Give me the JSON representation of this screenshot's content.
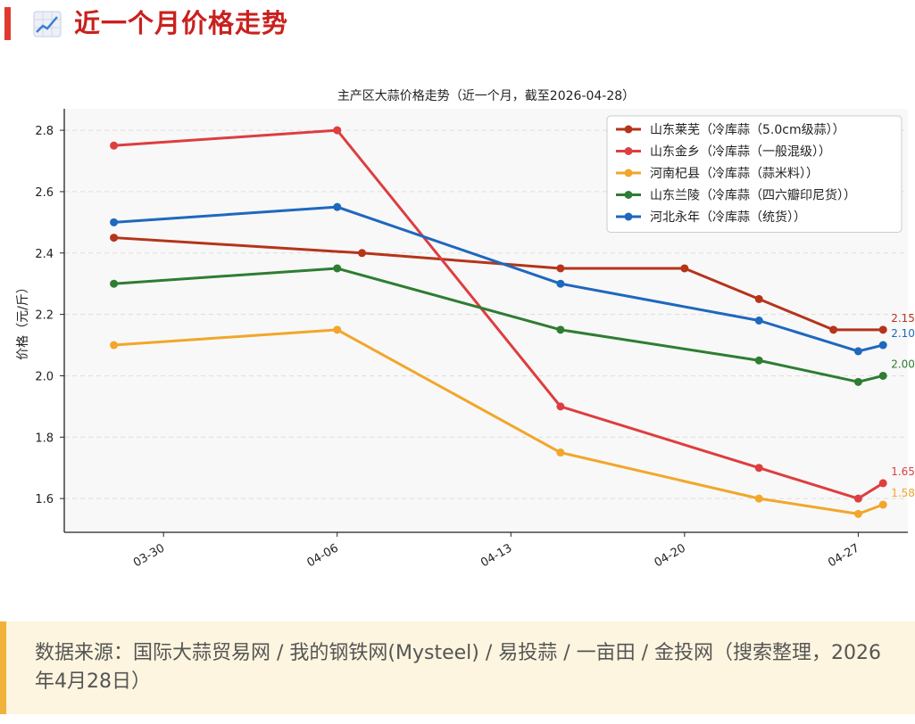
{
  "header": {
    "title": "近一个月价格走势",
    "icon": "chart-line-icon",
    "accent_color": "#e03a2f"
  },
  "source": {
    "text": "数据来源：国际大蒜贸易网 / 我的钢铁网(Mysteel) / 易投蒜 / 一亩田 / 金投网（搜索整理，2026年4月28日）"
  },
  "chart_data": {
    "type": "line",
    "title": "主产区大蒜价格走势（近一个月，截至2026-04-28）",
    "xlabel": "",
    "ylabel": "价格（元/斤）",
    "x_axis": {
      "type": "date",
      "range": [
        "2026-03-26",
        "2026-04-29"
      ],
      "ticks": [
        "2026-03-30",
        "2026-04-06",
        "2026-04-13",
        "2026-04-20",
        "2026-04-27"
      ],
      "tick_labels": [
        "03-30",
        "04-06",
        "04-13",
        "04-20",
        "04-27"
      ]
    },
    "ylim": [
      1.49,
      2.87
    ],
    "yticks": [
      1.6,
      1.8,
      2.0,
      2.2,
      2.4,
      2.6,
      2.8
    ],
    "grid": true,
    "legend_position": "top-right",
    "series": [
      {
        "name": "山东莱芜（冷库蒜（5.0cm级蒜））",
        "color": "#b5341a",
        "x": [
          "2026-03-28",
          "2026-04-07",
          "2026-04-15",
          "2026-04-20",
          "2026-04-23",
          "2026-04-26",
          "2026-04-28"
        ],
        "y": [
          2.45,
          2.4,
          2.35,
          2.35,
          2.25,
          2.15,
          2.15
        ],
        "end_label": "2.15"
      },
      {
        "name": "山东金乡（冷库蒜（一般混级））",
        "color": "#dd3e3f",
        "x": [
          "2026-03-28",
          "2026-04-06",
          "2026-04-15",
          "2026-04-23",
          "2026-04-27",
          "2026-04-28"
        ],
        "y": [
          2.75,
          2.8,
          1.9,
          1.7,
          1.6,
          1.65
        ],
        "end_label": "1.65"
      },
      {
        "name": "河南杞县（冷库蒜（蒜米料））",
        "color": "#f2a62a",
        "x": [
          "2026-03-28",
          "2026-04-06",
          "2026-04-15",
          "2026-04-23",
          "2026-04-27",
          "2026-04-28"
        ],
        "y": [
          2.1,
          2.15,
          1.75,
          1.6,
          1.55,
          1.58
        ],
        "end_label": "1.58"
      },
      {
        "name": "山东兰陵（冷库蒜（四六瓣印尼货））",
        "color": "#2e7d32",
        "x": [
          "2026-03-28",
          "2026-04-06",
          "2026-04-15",
          "2026-04-23",
          "2026-04-27",
          "2026-04-28"
        ],
        "y": [
          2.3,
          2.35,
          2.15,
          2.05,
          1.98,
          2.0
        ],
        "end_label": "2.00"
      },
      {
        "name": "河北永年（冷库蒜（统货））",
        "color": "#1e68be",
        "x": [
          "2026-03-28",
          "2026-04-06",
          "2026-04-15",
          "2026-04-23",
          "2026-04-27",
          "2026-04-28"
        ],
        "y": [
          2.5,
          2.55,
          2.3,
          2.18,
          2.08,
          2.1
        ],
        "end_label": "2.10"
      }
    ]
  }
}
